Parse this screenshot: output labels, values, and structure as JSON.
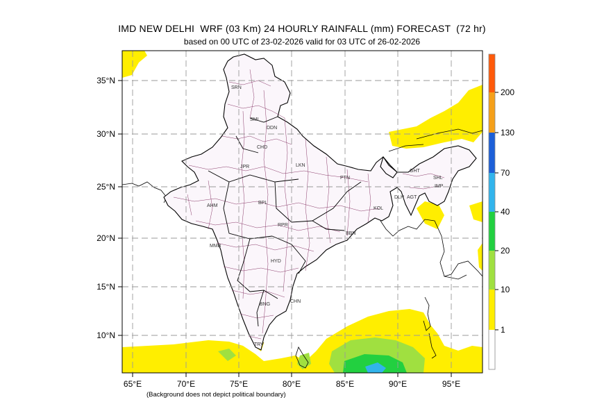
{
  "header": {
    "title": "IMD NEW DELHI  WRF (03 Km) 24 HOURLY RAINFALL (mm) FORECAST  (72 hr)",
    "subtitle": "based on 00 UTC of 23-02-2026 valid for 03 UTC of 26-02-2026"
  },
  "footer": {
    "note": "(Background does not depict political boundary)"
  },
  "map": {
    "lon_ticks": [
      "65°E",
      "70°E",
      "75°E",
      "80°E",
      "85°E",
      "90°E",
      "95°E"
    ],
    "lat_ticks": [
      "35°N",
      "30°N",
      "25°N",
      "20°N",
      "15°N",
      "10°N"
    ],
    "grid": true,
    "city_labels": [
      "SRN",
      "SML",
      "DDN",
      "CHD",
      "JPR",
      "LKN",
      "PTN",
      "GHT",
      "SHL",
      "IMP",
      "AGT",
      "KOL",
      "BBN",
      "RPR",
      "BPL",
      "AHM",
      "MMB",
      "HYD",
      "BNG",
      "CHN",
      "TRV",
      "DLH"
    ]
  },
  "legend": {
    "labels": [
      "200",
      "130",
      "70",
      "40",
      "20",
      "10",
      "1"
    ],
    "colors": [
      "#ff5a0a",
      "#f5a01a",
      "#1c5fd8",
      "#32b4ec",
      "#22d040",
      "#a0e040",
      "#ffee00",
      "#ffffff"
    ],
    "unit": "mm"
  }
}
